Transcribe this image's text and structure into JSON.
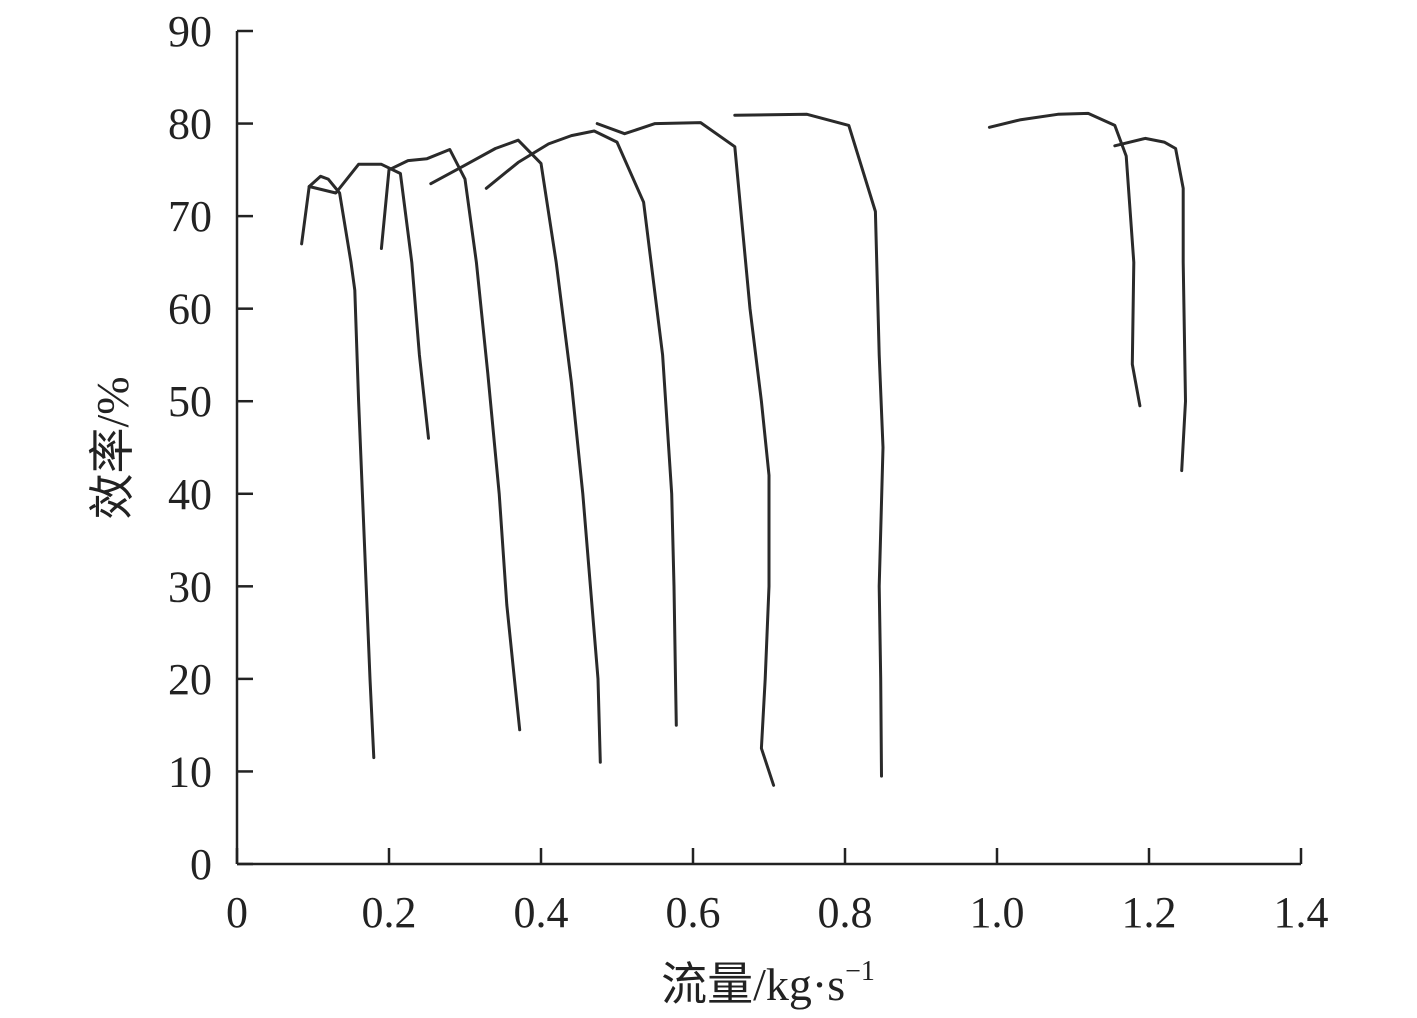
{
  "chart_data": {
    "type": "line",
    "xlabel": "流量/kg·s",
    "xlabel_sup": "−1",
    "ylabel": "效率/%",
    "xlim": [
      0,
      1.4
    ],
    "ylim": [
      0,
      90
    ],
    "xticks": [
      0,
      0.2,
      0.4,
      0.6,
      0.8,
      1.0,
      1.2,
      1.4
    ],
    "xtick_labels": [
      "0",
      "0.2",
      "0.4",
      "0.6",
      "0.8",
      "1.0",
      "1.2",
      "1.4"
    ],
    "yticks": [
      0,
      10,
      20,
      30,
      40,
      50,
      60,
      70,
      80,
      90
    ],
    "ytick_labels": [
      "0",
      "10",
      "20",
      "30",
      "40",
      "50",
      "60",
      "70",
      "80",
      "90"
    ],
    "grid": false,
    "series": [
      {
        "points": [
          [
            0.085,
            67.0
          ],
          [
            0.095,
            73.2
          ],
          [
            0.11,
            74.3
          ],
          [
            0.12,
            74.0
          ],
          [
            0.135,
            72.5
          ],
          [
            0.15,
            65.0
          ],
          [
            0.155,
            62.0
          ],
          [
            0.16,
            50.0
          ],
          [
            0.165,
            40.0
          ],
          [
            0.17,
            30.0
          ],
          [
            0.175,
            20.0
          ],
          [
            0.18,
            11.5
          ]
        ]
      },
      {
        "points": [
          [
            0.095,
            73.2
          ],
          [
            0.13,
            72.5
          ],
          [
            0.16,
            75.6
          ],
          [
            0.19,
            75.6
          ],
          [
            0.215,
            74.6
          ],
          [
            0.23,
            65.0
          ],
          [
            0.24,
            55.0
          ],
          [
            0.252,
            46.0
          ]
        ]
      },
      {
        "points": [
          [
            0.19,
            66.5
          ],
          [
            0.2,
            75.0
          ],
          [
            0.225,
            76.0
          ],
          [
            0.25,
            76.2
          ],
          [
            0.28,
            77.2
          ],
          [
            0.3,
            74.0
          ],
          [
            0.315,
            65.0
          ],
          [
            0.33,
            53.0
          ],
          [
            0.345,
            40.0
          ],
          [
            0.355,
            28.0
          ],
          [
            0.365,
            20.0
          ],
          [
            0.372,
            14.5
          ]
        ]
      },
      {
        "points": [
          [
            0.255,
            73.5
          ],
          [
            0.3,
            75.5
          ],
          [
            0.34,
            77.3
          ],
          [
            0.37,
            78.2
          ],
          [
            0.4,
            75.7
          ],
          [
            0.42,
            65.0
          ],
          [
            0.44,
            52.0
          ],
          [
            0.455,
            40.0
          ],
          [
            0.465,
            30.0
          ],
          [
            0.475,
            20.0
          ],
          [
            0.478,
            11.0
          ]
        ]
      },
      {
        "points": [
          [
            0.328,
            73.0
          ],
          [
            0.37,
            75.8
          ],
          [
            0.41,
            77.8
          ],
          [
            0.44,
            78.7
          ],
          [
            0.47,
            79.2
          ],
          [
            0.5,
            78.0
          ],
          [
            0.535,
            71.5
          ],
          [
            0.56,
            55.0
          ],
          [
            0.572,
            40.0
          ],
          [
            0.575,
            30.0
          ],
          [
            0.577,
            20.0
          ],
          [
            0.578,
            15.0
          ]
        ]
      },
      {
        "points": [
          [
            0.474,
            80.0
          ],
          [
            0.51,
            78.9
          ],
          [
            0.55,
            80.0
          ],
          [
            0.61,
            80.1
          ],
          [
            0.655,
            77.5
          ],
          [
            0.675,
            60.0
          ],
          [
            0.69,
            50.0
          ],
          [
            0.7,
            42.0
          ],
          [
            0.7,
            30.0
          ],
          [
            0.695,
            20.0
          ],
          [
            0.69,
            12.5
          ],
          [
            0.706,
            8.5
          ]
        ]
      },
      {
        "points": [
          [
            0.655,
            80.9
          ],
          [
            0.75,
            81.0
          ],
          [
            0.805,
            79.8
          ],
          [
            0.84,
            70.5
          ],
          [
            0.845,
            55.0
          ],
          [
            0.85,
            45.0
          ],
          [
            0.845,
            30.0
          ],
          [
            0.847,
            20.0
          ],
          [
            0.848,
            9.5
          ]
        ]
      },
      {
        "points": [
          [
            0.99,
            79.6
          ],
          [
            1.03,
            80.4
          ],
          [
            1.08,
            81.0
          ],
          [
            1.12,
            81.1
          ],
          [
            1.155,
            79.8
          ],
          [
            1.17,
            76.5
          ],
          [
            1.18,
            65.0
          ],
          [
            1.178,
            54.0
          ],
          [
            1.188,
            49.5
          ]
        ]
      },
      {
        "points": [
          [
            1.155,
            77.6
          ],
          [
            1.195,
            78.4
          ],
          [
            1.22,
            78.0
          ],
          [
            1.235,
            77.3
          ],
          [
            1.245,
            73.0
          ],
          [
            1.245,
            65.0
          ],
          [
            1.248,
            50.0
          ],
          [
            1.243,
            42.5
          ]
        ]
      }
    ]
  }
}
